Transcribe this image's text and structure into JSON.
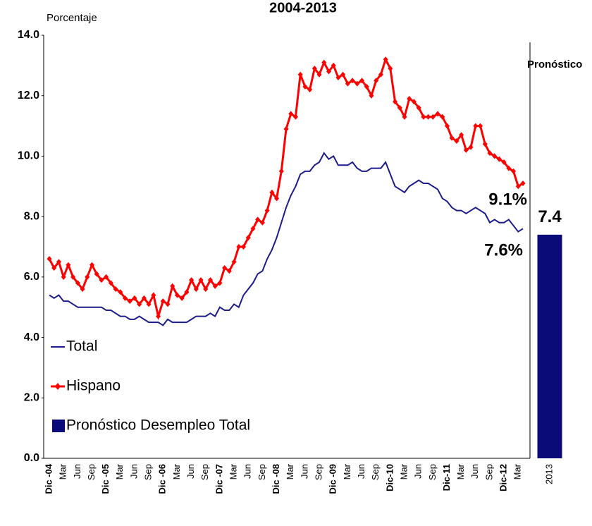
{
  "chart_data": [
    {
      "type": "line",
      "title": "2004-2013",
      "y_label": "Porcentaje",
      "categories": [
        "Dic -04",
        null,
        null,
        "Mar",
        null,
        null,
        "Jun",
        null,
        null,
        "Sep",
        null,
        null,
        "Dic -05",
        null,
        null,
        "Mar",
        null,
        null,
        "Jun",
        null,
        null,
        "Sep",
        null,
        null,
        "Dic -06",
        null,
        null,
        "Mar",
        null,
        null,
        "Jun",
        null,
        null,
        "Sep",
        null,
        null,
        "Dic -07",
        null,
        null,
        "Mar",
        null,
        null,
        "Jun",
        null,
        null,
        "Sep",
        null,
        null,
        "Dic -08",
        null,
        null,
        "Mar",
        null,
        null,
        "Jun",
        null,
        null,
        "Sep",
        null,
        null,
        "Dic -09",
        null,
        null,
        "Mar",
        null,
        null,
        "Jun",
        null,
        null,
        "Sep",
        null,
        null,
        "Dic-10",
        null,
        null,
        "Mar",
        null,
        null,
        "Jun",
        null,
        null,
        "Sep",
        null,
        null,
        "Dic-11",
        null,
        null,
        "Mar",
        null,
        null,
        "Jun",
        null,
        null,
        "Sep",
        null,
        null,
        "Dic-12",
        null,
        null,
        "Mar",
        null
      ],
      "series": [
        {
          "name": "Total",
          "color": "#1c1c8a",
          "values": [
            5.4,
            5.3,
            5.4,
            5.2,
            5.2,
            5.1,
            5.0,
            5.0,
            5.0,
            5.0,
            5.0,
            5.0,
            4.9,
            4.9,
            4.8,
            4.7,
            4.7,
            4.6,
            4.6,
            4.7,
            4.6,
            4.5,
            4.5,
            4.5,
            4.4,
            4.6,
            4.5,
            4.5,
            4.5,
            4.5,
            4.6,
            4.7,
            4.7,
            4.7,
            4.8,
            4.7,
            5.0,
            4.9,
            4.9,
            5.1,
            5.0,
            5.4,
            5.6,
            5.8,
            6.1,
            6.2,
            6.6,
            6.9,
            7.3,
            7.8,
            8.3,
            8.7,
            9.0,
            9.4,
            9.5,
            9.5,
            9.7,
            9.8,
            10.1,
            9.9,
            10.0,
            9.7,
            9.7,
            9.7,
            9.8,
            9.6,
            9.5,
            9.5,
            9.6,
            9.6,
            9.6,
            9.8,
            9.4,
            9.0,
            8.9,
            8.8,
            9.0,
            9.1,
            9.2,
            9.1,
            9.1,
            9.0,
            8.9,
            8.6,
            8.5,
            8.3,
            8.2,
            8.2,
            8.1,
            8.2,
            8.3,
            8.2,
            8.1,
            7.8,
            7.9,
            7.8,
            7.8,
            7.9,
            7.7,
            7.5,
            7.6
          ]
        },
        {
          "name": "Hispano",
          "color": "#ff0000",
          "values": [
            6.6,
            6.3,
            6.5,
            6.0,
            6.4,
            6.0,
            5.8,
            5.6,
            6.0,
            6.4,
            6.1,
            5.9,
            6.0,
            5.8,
            5.6,
            5.5,
            5.3,
            5.2,
            5.3,
            5.1,
            5.3,
            5.1,
            5.4,
            4.7,
            5.2,
            5.1,
            5.7,
            5.4,
            5.3,
            5.5,
            5.9,
            5.6,
            5.9,
            5.6,
            5.9,
            5.7,
            5.8,
            6.3,
            6.2,
            6.5,
            7.0,
            7.0,
            7.3,
            7.6,
            7.9,
            7.8,
            8.2,
            8.8,
            8.6,
            9.5,
            10.9,
            11.4,
            11.3,
            12.7,
            12.3,
            12.2,
            12.9,
            12.7,
            13.1,
            12.8,
            13.0,
            12.6,
            12.7,
            12.4,
            12.5,
            12.4,
            12.5,
            12.3,
            12.0,
            12.5,
            12.7,
            13.2,
            12.9,
            11.8,
            11.6,
            11.3,
            11.9,
            11.8,
            11.6,
            11.3,
            11.3,
            11.3,
            11.4,
            11.3,
            11.0,
            10.6,
            10.5,
            10.7,
            10.2,
            10.3,
            11.0,
            11.0,
            10.4,
            10.1,
            10.0,
            9.9,
            9.8,
            9.6,
            9.5,
            9.0,
            9.1
          ]
        }
      ],
      "annotations": [
        "9.1%",
        "7.6%"
      ],
      "ylim": [
        0,
        14
      ],
      "yticks": [
        {
          "value": 0,
          "label": "0.0"
        },
        {
          "value": 2,
          "label": "2.0"
        },
        {
          "value": 4,
          "label": "4.0"
        },
        {
          "value": 6,
          "label": "6.0"
        },
        {
          "value": 8,
          "label": "8.0"
        },
        {
          "value": 10,
          "label": "10.0"
        },
        {
          "value": 12,
          "label": "12.0"
        },
        {
          "value": 14,
          "label": "14.0"
        }
      ],
      "legend": "center left"
    },
    {
      "type": "bar",
      "title": "Pronóstico",
      "categories": [
        "2013"
      ],
      "series": [
        {
          "name": "Pronóstico Desempleo Total",
          "color": "#0a0a78",
          "values": [
            7.4
          ]
        }
      ],
      "ylim": [
        0,
        14
      ]
    }
  ]
}
